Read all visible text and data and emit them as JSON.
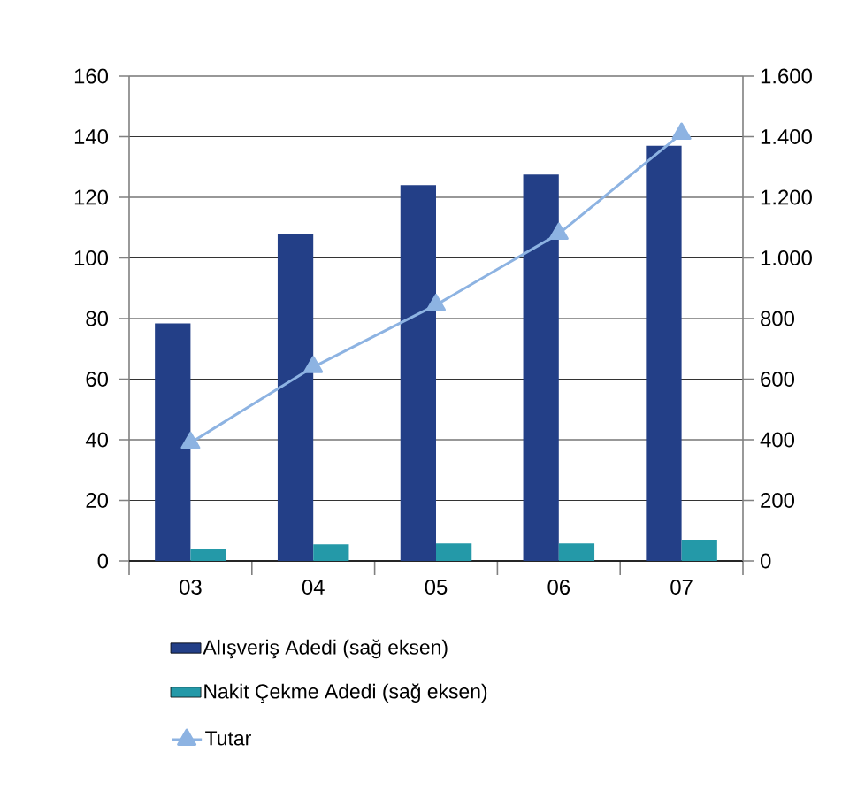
{
  "chart_data": {
    "type": "bar",
    "categories": [
      "03",
      "04",
      "05",
      "06",
      "07"
    ],
    "series": [
      {
        "name": "Alışveriş Adedi (sağ eksen)",
        "color": "#233f87",
        "values": [
          784,
          1080,
          1240,
          1275,
          1370
        ],
        "axis": "y2"
      },
      {
        "name": "Nakit Çekme Adedi (sağ eksen)",
        "color": "#2499a8",
        "values": [
          41,
          55,
          58,
          58,
          70
        ],
        "axis": "y2"
      },
      {
        "name": "Tutar",
        "type": "line",
        "color": "#8db3e2",
        "values": [
          39,
          64,
          84.5,
          108,
          141
        ],
        "marker": "triangle"
      }
    ],
    "ylim": [
      0,
      160
    ],
    "yticks": [
      0,
      20,
      40,
      60,
      80,
      100,
      120,
      140,
      160
    ],
    "y2lim": [
      0,
      1600
    ],
    "y2ticks": [
      0,
      200,
      400,
      600,
      800,
      {
        "value": 1000,
        "label": "1.000"
      },
      {
        "value": 1200,
        "label": "1.200"
      },
      {
        "value": 1400,
        "label": "1.400"
      },
      {
        "value": 1600,
        "label": "1.600"
      }
    ],
    "grid": "y",
    "legend": "bottom"
  }
}
